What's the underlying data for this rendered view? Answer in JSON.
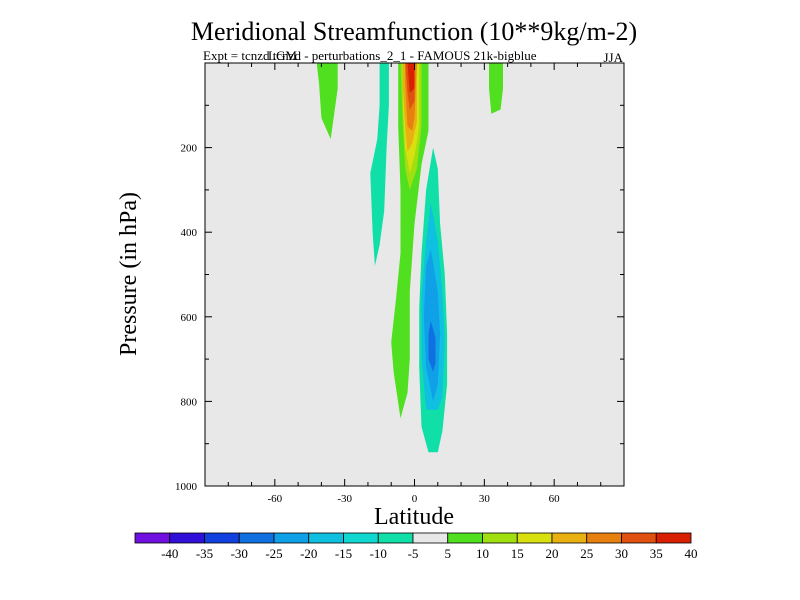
{
  "chart_data": {
    "type": "contour",
    "title": "Meridional Streamfunction (10**9kg/m-2)",
    "subtitle_left": "Expt = tcnzd tcnzd - perturbations_2_1 - FAMOUS 21k-bigblue",
    "subtitle_overlay": "LGM",
    "subtitle_right": "JJA",
    "xlabel": "Latitude",
    "ylabel": "Pressure (in hPa)",
    "xlim": [
      -90,
      90
    ],
    "ylim": [
      0,
      1000
    ],
    "x_ticks": [
      "-60",
      "-30",
      "0",
      "30",
      "60"
    ],
    "x_tick_values": [
      -60,
      -30,
      0,
      30,
      60
    ],
    "y_ticks": [
      "200",
      "400",
      "600",
      "800",
      "1000"
    ],
    "y_tick_values": [
      200,
      400,
      600,
      800,
      1000
    ],
    "colorbar": {
      "levels": [
        -40,
        -35,
        -30,
        -25,
        -20,
        -15,
        -10,
        -5,
        5,
        10,
        15,
        20,
        25,
        30,
        35,
        40
      ],
      "labels": [
        "-40",
        "-35",
        "-30",
        "-25",
        "-20",
        "-15",
        "-10",
        "-5",
        "5",
        "10",
        "15",
        "20",
        "25",
        "30",
        "35",
        "40"
      ],
      "colors": [
        "#7010e0",
        "#3010d8",
        "#1040e0",
        "#1070e0",
        "#10a0e8",
        "#10c0e0",
        "#10d8d0",
        "#10e0a8",
        "#e8e8e8",
        "#50e020",
        "#a0e010",
        "#d8e010",
        "#e8b010",
        "#e88010",
        "#e05010",
        "#d82000"
      ]
    },
    "regions": [
      {
        "name": "upper-shoulder-left",
        "value": 7.5,
        "color": "#50e020",
        "points": [
          [
            -42,
            0
          ],
          [
            -33,
            0
          ],
          [
            -33,
            60
          ],
          [
            -36,
            180
          ],
          [
            -40,
            130
          ],
          [
            -41,
            50
          ]
        ]
      },
      {
        "name": "upper-shoulder-right",
        "value": 7.5,
        "color": "#50e020",
        "points": [
          [
            32,
            0
          ],
          [
            38,
            0
          ],
          [
            38,
            60
          ],
          [
            37,
            110
          ],
          [
            33,
            120
          ],
          [
            32,
            60
          ]
        ]
      },
      {
        "name": "southern-cell-thin",
        "value": -7.5,
        "color": "#10e0a8",
        "points": [
          [
            -15,
            0
          ],
          [
            -11,
            0
          ],
          [
            -11,
            100
          ],
          [
            -12,
            200
          ],
          [
            -13,
            350
          ],
          [
            -15,
            430
          ],
          [
            -17,
            480
          ],
          [
            -18,
            400
          ],
          [
            -19,
            260
          ],
          [
            -16,
            180
          ],
          [
            -15,
            100
          ]
        ]
      },
      {
        "name": "main-positive-band",
        "value": 7.5,
        "color": "#50e020",
        "points": [
          [
            -7,
            0
          ],
          [
            6,
            0
          ],
          [
            6,
            160
          ],
          [
            3,
            240
          ],
          [
            0,
            380
          ],
          [
            -2,
            540
          ],
          [
            -2,
            700
          ],
          [
            -3,
            780
          ],
          [
            -6,
            840
          ],
          [
            -9,
            730
          ],
          [
            -10,
            660
          ],
          [
            -8,
            560
          ],
          [
            -6,
            450
          ],
          [
            -6,
            300
          ],
          [
            -7,
            150
          ]
        ]
      },
      {
        "name": "main-positive-core",
        "value": 12.5,
        "color": "#a0e010",
        "points": [
          [
            -6,
            0
          ],
          [
            3,
            0
          ],
          [
            3,
            150
          ],
          [
            1,
            250
          ],
          [
            -2,
            300
          ],
          [
            -4,
            250
          ],
          [
            -5,
            150
          ]
        ]
      },
      {
        "name": "main-positive-core",
        "value": 17.5,
        "color": "#d8e010",
        "points": [
          [
            -5,
            0
          ],
          [
            2,
            0
          ],
          [
            2,
            150
          ],
          [
            0,
            220
          ],
          [
            -2,
            260
          ],
          [
            -4,
            200
          ],
          [
            -5,
            100
          ]
        ]
      },
      {
        "name": "main-positive-core",
        "value": 22.5,
        "color": "#e8b010",
        "points": [
          [
            -5,
            0
          ],
          [
            1,
            0
          ],
          [
            1,
            140
          ],
          [
            -1,
            190
          ],
          [
            -3,
            210
          ],
          [
            -4,
            150
          ],
          [
            -5,
            60
          ]
        ]
      },
      {
        "name": "main-positive-core",
        "value": 27.5,
        "color": "#e88010",
        "points": [
          [
            -4,
            0
          ],
          [
            1,
            0
          ],
          [
            0,
            130
          ],
          [
            -1,
            160
          ],
          [
            -3,
            150
          ],
          [
            -4,
            50
          ]
        ]
      },
      {
        "name": "main-positive-core",
        "value": 32.5,
        "color": "#e05010",
        "points": [
          [
            -4,
            0
          ],
          [
            0,
            0
          ],
          [
            0,
            90
          ],
          [
            -2,
            110
          ],
          [
            -3,
            70
          ]
        ]
      },
      {
        "name": "main-positive-core",
        "value": 37.5,
        "color": "#d82000",
        "points": [
          [
            -3,
            0
          ],
          [
            0,
            0
          ],
          [
            0,
            60
          ],
          [
            -2,
            70
          ]
        ]
      },
      {
        "name": "northern-cell",
        "value": -7.5,
        "color": "#10e0a8",
        "points": [
          [
            8,
            200
          ],
          [
            10,
            250
          ],
          [
            11,
            380
          ],
          [
            13,
            500
          ],
          [
            14,
            640
          ],
          [
            14,
            760
          ],
          [
            12,
            870
          ],
          [
            10,
            920
          ],
          [
            6,
            920
          ],
          [
            3,
            860
          ],
          [
            2,
            720
          ],
          [
            2,
            580
          ],
          [
            3,
            450
          ],
          [
            5,
            300
          ]
        ]
      },
      {
        "name": "northern-cell",
        "value": -12.5,
        "color": "#10c0e0",
        "points": [
          [
            7,
            330
          ],
          [
            10,
            420
          ],
          [
            12,
            540
          ],
          [
            13,
            660
          ],
          [
            12,
            790
          ],
          [
            10,
            820
          ],
          [
            5,
            820
          ],
          [
            3,
            700
          ],
          [
            3,
            550
          ],
          [
            5,
            420
          ]
        ]
      },
      {
        "name": "northern-cell",
        "value": -17.5,
        "color": "#10a0e8",
        "points": [
          [
            7,
            440
          ],
          [
            10,
            540
          ],
          [
            11,
            640
          ],
          [
            10,
            760
          ],
          [
            8,
            800
          ],
          [
            5,
            720
          ],
          [
            4,
            600
          ],
          [
            5,
            480
          ]
        ]
      },
      {
        "name": "northern-cell",
        "value": -22.5,
        "color": "#1070e0",
        "points": [
          [
            7,
            610
          ],
          [
            9,
            650
          ],
          [
            9,
            710
          ],
          [
            8,
            730
          ],
          [
            6,
            700
          ],
          [
            6,
            640
          ]
        ]
      }
    ]
  }
}
